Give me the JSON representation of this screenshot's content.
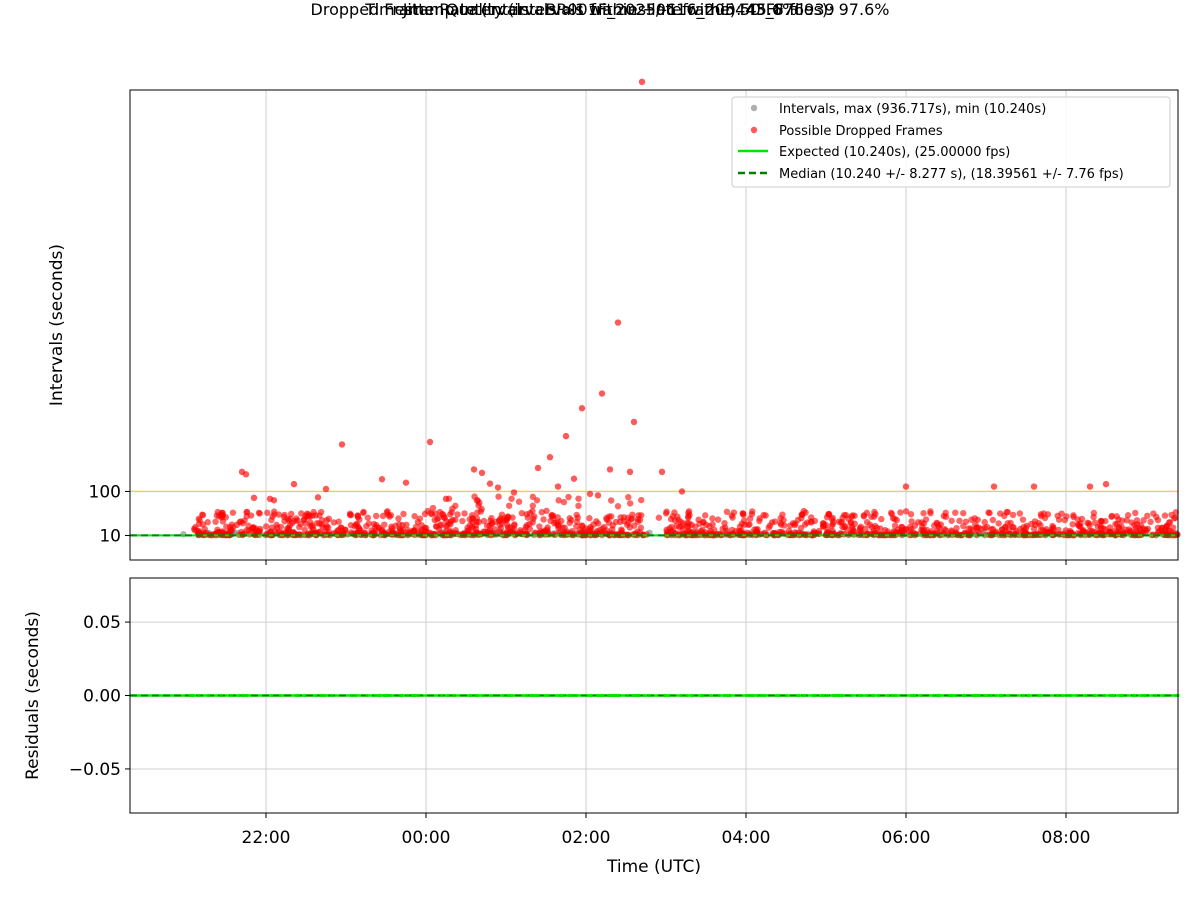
{
  "title": "Timestamp Intervals - BR001F_20250616_205443_876939",
  "subtitle_1": "Jitter Quality (intervals within +/-1 frame): 45.6%",
  "subtitle_2": "Dropped Frame Rate (intervals >1 frames late within 50 FF files): 97.6%",
  "colors": {
    "intervals": "#8c8c8c",
    "dropped": "#ff0000",
    "expected": "#00e600",
    "median": "#008000",
    "threshold": "#ffcc44",
    "grid": "#cfcfcf"
  },
  "chart_data": [
    {
      "type": "scatter",
      "x_axis": "time (hours, UTC, continuing past midnight)",
      "xlabel": "",
      "ylabel": "Intervals (seconds)",
      "ytick_labels": [
        "10",
        "100"
      ],
      "ytick_values": [
        10,
        100
      ],
      "xlim": [
        20.3,
        33.4
      ],
      "ylim": [
        -40,
        920
      ],
      "grid": "x only",
      "legend_placement": "top-right",
      "legend": [
        "Intervals, max (936.717s), min (10.240s)",
        "Possible Dropped Frames",
        "Expected (10.240s), (25.00000 fps)",
        "Median (10.240 +/- 8.277 s), (18.39561 +/- 7.76 fps)"
      ],
      "expected_value": 10.24,
      "median_value": 10.24,
      "threshold_value": 100,
      "intervals_x_range": [
        20.93,
        33.4
      ],
      "intervals_base_value": 10.24,
      "dropped_points": [
        {
          "x": 21.7,
          "y": 140
        },
        {
          "x": 21.75,
          "y": 135
        },
        {
          "x": 21.85,
          "y": 87
        },
        {
          "x": 22.05,
          "y": 85
        },
        {
          "x": 22.1,
          "y": 82
        },
        {
          "x": 22.35,
          "y": 115
        },
        {
          "x": 22.65,
          "y": 88
        },
        {
          "x": 22.75,
          "y": 105
        },
        {
          "x": 22.95,
          "y": 196
        },
        {
          "x": 23.45,
          "y": 125
        },
        {
          "x": 23.75,
          "y": 118
        },
        {
          "x": 24.05,
          "y": 201
        },
        {
          "x": 24.25,
          "y": 85
        },
        {
          "x": 24.6,
          "y": 145
        },
        {
          "x": 24.7,
          "y": 138
        },
        {
          "x": 24.8,
          "y": 116
        },
        {
          "x": 24.9,
          "y": 108
        },
        {
          "x": 25.1,
          "y": 98
        },
        {
          "x": 25.4,
          "y": 148
        },
        {
          "x": 25.55,
          "y": 170
        },
        {
          "x": 25.65,
          "y": 110
        },
        {
          "x": 25.75,
          "y": 213
        },
        {
          "x": 25.85,
          "y": 126
        },
        {
          "x": 25.95,
          "y": 270
        },
        {
          "x": 26.05,
          "y": 95
        },
        {
          "x": 26.15,
          "y": 92
        },
        {
          "x": 26.2,
          "y": 300
        },
        {
          "x": 26.3,
          "y": 145
        },
        {
          "x": 26.4,
          "y": 445
        },
        {
          "x": 26.55,
          "y": 140
        },
        {
          "x": 26.6,
          "y": 242
        },
        {
          "x": 26.7,
          "y": 936.717
        },
        {
          "x": 26.95,
          "y": 140
        },
        {
          "x": 27.2,
          "y": 100
        },
        {
          "x": 30.0,
          "y": 110
        },
        {
          "x": 31.1,
          "y": 110
        },
        {
          "x": 31.6,
          "y": 110
        },
        {
          "x": 32.3,
          "y": 110
        },
        {
          "x": 32.5,
          "y": 115
        }
      ],
      "dropped_cluster_x_range": [
        21.1,
        33.4
      ],
      "dropped_cluster_y_range": [
        10.8,
        60
      ]
    },
    {
      "type": "line",
      "xlabel": "Time (UTC)",
      "ylabel": "Residuals (seconds)",
      "xtick_labels": [
        "22:00",
        "00:00",
        "02:00",
        "04:00",
        "06:00",
        "08:00"
      ],
      "xtick_values": [
        22,
        24,
        26,
        28,
        30,
        32
      ],
      "ytick_labels": [
        "0.05",
        "0.00",
        "−0.05"
      ],
      "ytick_values": [
        0.05,
        0.0,
        -0.05
      ],
      "xlim": [
        20.3,
        33.4
      ],
      "ylim": [
        -0.08,
        0.08
      ],
      "grid": "x and y",
      "residual_value": 0.0
    }
  ]
}
